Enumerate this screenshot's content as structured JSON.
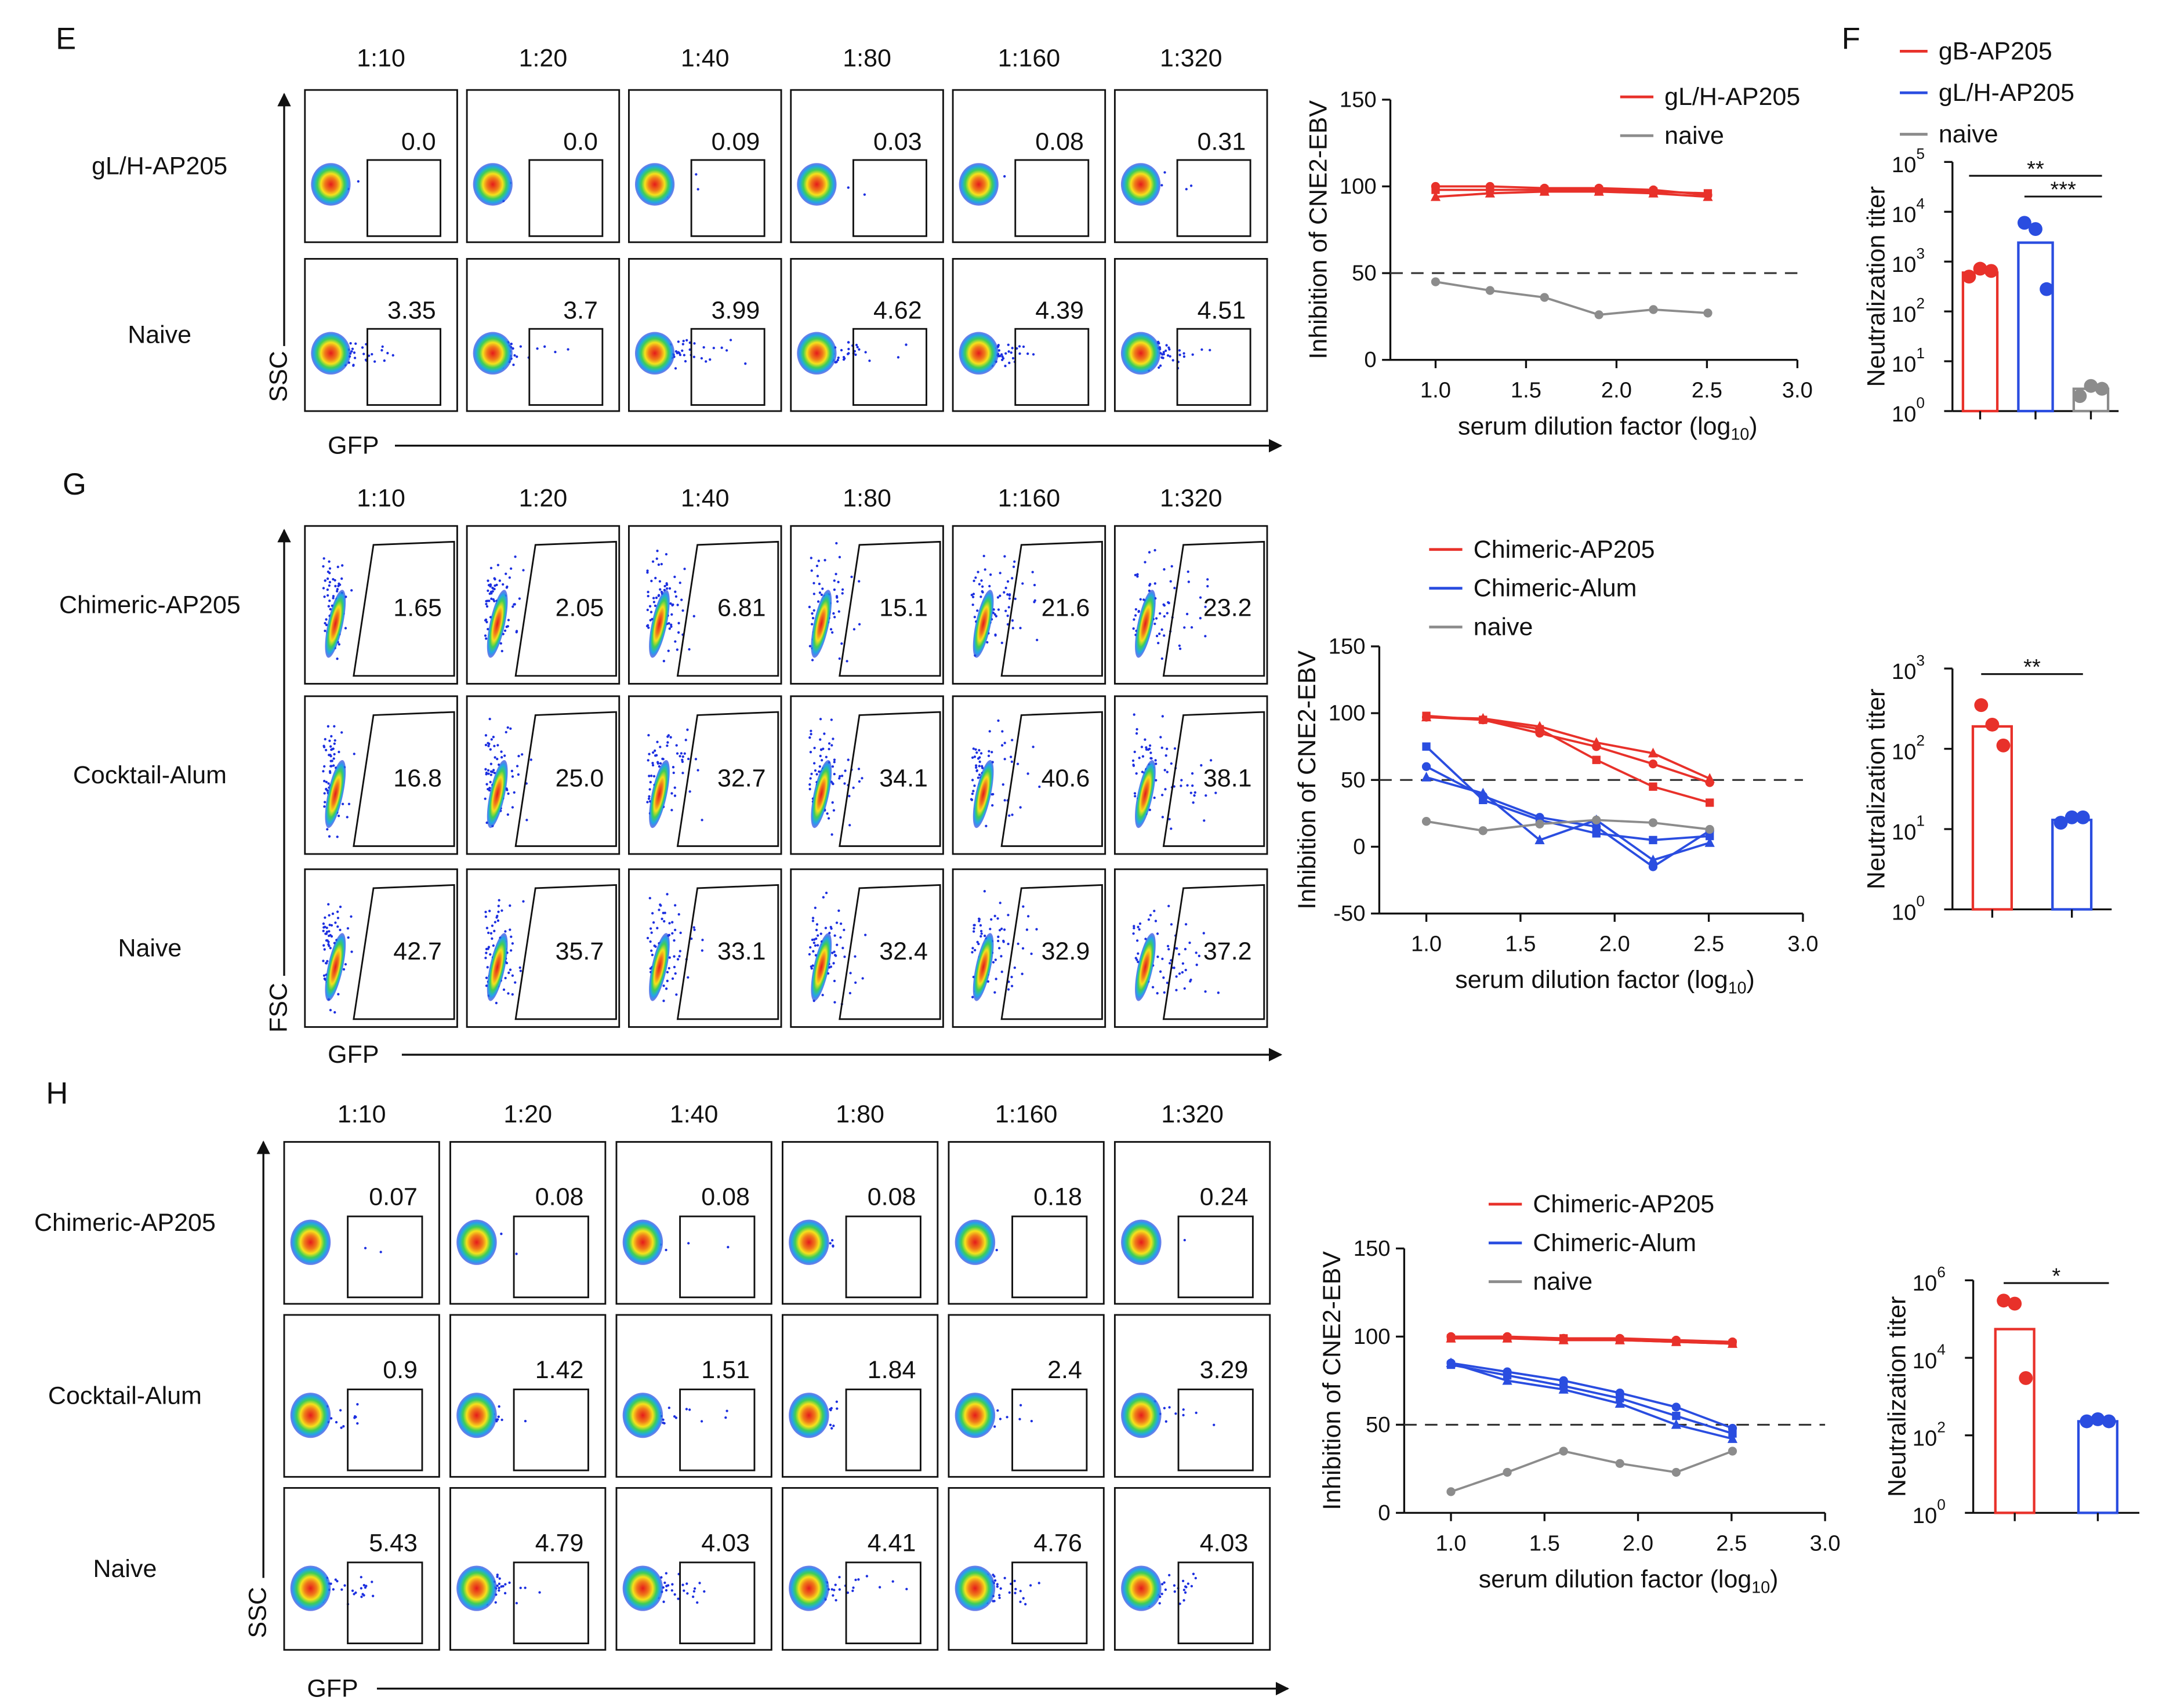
{
  "panel_labels": [
    "E",
    "F",
    "G",
    "H"
  ],
  "flow_panels": [
    {
      "dilutions": [
        "1:10",
        "1:20",
        "1:40",
        "1:80",
        "1:160",
        "1:320"
      ],
      "y_axis": "SSC",
      "x_axis": "GFP",
      "gate": "rect",
      "rows": [
        {
          "label": "gL/H-AP205",
          "gates": [
            "0.0",
            "0.0",
            "0.09",
            "0.03",
            "0.08",
            "0.31"
          ]
        },
        {
          "label": "Naive",
          "gates": [
            "3.35",
            "3.7",
            "3.99",
            "4.62",
            "4.39",
            "4.51"
          ]
        }
      ]
    },
    {
      "dilutions": [
        "1:10",
        "1:20",
        "1:40",
        "1:80",
        "1:160",
        "1:320"
      ],
      "y_axis": "FSC",
      "x_axis": "GFP",
      "gate": "polygon",
      "rows": [
        {
          "label": "Chimeric-AP205",
          "gates": [
            "1.65",
            "2.05",
            "6.81",
            "15.1",
            "21.6",
            "23.2"
          ]
        },
        {
          "label": "Cocktail-Alum",
          "gates": [
            "16.8",
            "25.0",
            "32.7",
            "34.1",
            "40.6",
            "38.1"
          ]
        },
        {
          "label": "Naive",
          "gates": [
            "42.7",
            "35.7",
            "33.1",
            "32.4",
            "32.9",
            "37.2"
          ]
        }
      ]
    },
    {
      "dilutions": [
        "1:10",
        "1:20",
        "1:40",
        "1:80",
        "1:160",
        "1:320"
      ],
      "y_axis": "SSC",
      "x_axis": "GFP",
      "gate": "rect",
      "rows": [
        {
          "label": "Chimeric-AP205",
          "gates": [
            "0.07",
            "0.08",
            "0.08",
            "0.08",
            "0.18",
            "0.24"
          ]
        },
        {
          "label": "Cocktail-Alum",
          "gates": [
            "0.9",
            "1.42",
            "1.51",
            "1.84",
            "2.4",
            "3.29"
          ]
        },
        {
          "label": "Naive",
          "gates": [
            "5.43",
            "4.79",
            "4.03",
            "4.41",
            "4.76",
            "4.03"
          ]
        }
      ]
    }
  ],
  "chart_data": [
    {
      "type": "line",
      "ylabel": "Inhibition of CNE2-EBV",
      "xlabel": {
        "text": "serum dilution factor (log",
        "sub": "10",
        "end": ")"
      },
      "x": [
        1.0,
        1.301,
        1.602,
        1.903,
        2.204,
        2.505
      ],
      "xlim": [
        0.75,
        3.0
      ],
      "xticks": [
        {
          "value": 1,
          "label": "1.0"
        },
        {
          "value": 1.5,
          "label": "1.5"
        },
        {
          "value": 2,
          "label": "2.0"
        },
        {
          "value": 2.5,
          "label": "2.5"
        },
        {
          "value": 3,
          "label": "3.0"
        }
      ],
      "ylim": [
        0,
        150
      ],
      "yticks": [
        0,
        50,
        100,
        150
      ],
      "reference_line": 50,
      "series": [
        {
          "name": "gL/H-AP205",
          "color": "#e8312a",
          "replicates": [
            [
              100,
              100,
              99,
              99,
              98,
              95
            ],
            [
              98,
              98,
              98,
              98,
              97,
              96
            ],
            [
              94,
              96,
              97,
              97,
              96,
              94
            ]
          ]
        },
        {
          "name": "naive",
          "color": "#8c8c8c",
          "replicates": [
            [
              45,
              40,
              36,
              26,
              29,
              27
            ]
          ]
        }
      ]
    },
    {
      "type": "bar",
      "log_scale": true,
      "ylabel": "Neutralization titer",
      "ylim": [
        1,
        100000
      ],
      "yticks": [
        {
          "value": 1,
          "label": "10",
          "sup": "0"
        },
        {
          "value": 10,
          "label": "10",
          "sup": "1"
        },
        {
          "value": 100,
          "label": "10",
          "sup": "2"
        },
        {
          "value": 1000,
          "label": "10",
          "sup": "3"
        },
        {
          "value": 10000,
          "label": "10",
          "sup": "4"
        },
        {
          "value": 100000,
          "label": "10",
          "sup": "5"
        }
      ],
      "series": [
        {
          "name": "gB-AP205",
          "color": "#e8312a",
          "value": 600,
          "points": [
            500,
            720,
            650
          ]
        },
        {
          "name": "gL/H-AP205",
          "color": "#2a4de0",
          "value": 2400,
          "points": [
            6000,
            4500,
            280
          ]
        },
        {
          "name": "naive",
          "color": "#8c8c8c",
          "value": 2.8,
          "points": [
            2,
            3.2,
            2.8
          ]
        }
      ],
      "significance": [
        {
          "from": 0,
          "to": 2,
          "label": "**"
        },
        {
          "from": 1,
          "to": 2,
          "label": "***"
        }
      ]
    },
    {
      "type": "line",
      "ylabel": "Inhibition of CNE2-EBV",
      "xlabel": {
        "text": "serum dilution factor (log",
        "sub": "10",
        "end": ")"
      },
      "x": [
        1.0,
        1.301,
        1.602,
        1.903,
        2.204,
        2.505
      ],
      "xlim": [
        0.75,
        3.0
      ],
      "xticks": [
        {
          "value": 1,
          "label": "1.0"
        },
        {
          "value": 1.5,
          "label": "1.5"
        },
        {
          "value": 2,
          "label": "2.0"
        },
        {
          "value": 2.5,
          "label": "2.5"
        },
        {
          "value": 3,
          "label": "3.0"
        }
      ],
      "ylim": [
        -50,
        150
      ],
      "yticks": [
        -50,
        0,
        50,
        100,
        150
      ],
      "reference_line": 50,
      "series": [
        {
          "name": "Chimeric-AP205",
          "color": "#e8312a",
          "replicates": [
            [
              97,
              95,
              85,
              75,
              62,
              48
            ],
            [
              98,
              95,
              88,
              65,
              45,
              33
            ],
            [
              97,
              96,
              90,
              78,
              70,
              51
            ]
          ]
        },
        {
          "name": "Chimeric-Alum",
          "color": "#2a4de0",
          "replicates": [
            [
              60,
              38,
              22,
              15,
              -15,
              12
            ],
            [
              75,
              35,
              20,
              10,
              5,
              8
            ],
            [
              52,
              40,
              5,
              20,
              -10,
              3
            ]
          ]
        },
        {
          "name": "naive",
          "color": "#8c8c8c",
          "replicates": [
            [
              19,
              12,
              17,
              20,
              18,
              13
            ]
          ]
        }
      ]
    },
    {
      "type": "bar",
      "log_scale": true,
      "ylabel": "Neutralization titer",
      "ylim": [
        1,
        1000
      ],
      "yticks": [
        {
          "value": 1,
          "label": "10",
          "sup": "0"
        },
        {
          "value": 10,
          "label": "10",
          "sup": "1"
        },
        {
          "value": 100,
          "label": "10",
          "sup": "2"
        },
        {
          "value": 1000,
          "label": "10",
          "sup": "3"
        }
      ],
      "series": [
        {
          "color": "#e8312a",
          "value": 190,
          "points": [
            350,
            200,
            110
          ]
        },
        {
          "color": "#2a4de0",
          "value": 13,
          "points": [
            12,
            14,
            14
          ]
        }
      ],
      "significance": [
        {
          "from": 0,
          "to": 1,
          "label": "**"
        }
      ]
    },
    {
      "type": "line",
      "ylabel": "Inhibition of CNE2-EBV",
      "xlabel": {
        "text": "serum dilution factor (log",
        "sub": "10",
        "end": ")"
      },
      "x": [
        1.0,
        1.301,
        1.602,
        1.903,
        2.204,
        2.505
      ],
      "xlim": [
        0.75,
        3.0
      ],
      "xticks": [
        {
          "value": 1,
          "label": "1.0"
        },
        {
          "value": 1.5,
          "label": "1.5"
        },
        {
          "value": 2,
          "label": "2.0"
        },
        {
          "value": 2.5,
          "label": "2.5"
        },
        {
          "value": 3,
          "label": "3.0"
        }
      ],
      "ylim": [
        0,
        150
      ],
      "yticks": [
        0,
        50,
        100,
        150
      ],
      "reference_line": 50,
      "series": [
        {
          "name": "Chimeric-AP205",
          "color": "#e8312a",
          "replicates": [
            [
              100,
              100,
              99,
              99,
              98,
              97
            ],
            [
              99,
              99,
              99,
              98,
              97,
              96
            ],
            [
              99,
              99,
              98,
              98,
              97,
              96
            ]
          ]
        },
        {
          "name": "Chimeric-Alum",
          "color": "#2a4de0",
          "replicates": [
            [
              85,
              80,
              75,
              68,
              60,
              48
            ],
            [
              84,
              78,
              72,
              65,
              55,
              45
            ],
            [
              85,
              75,
              70,
              62,
              50,
              42
            ]
          ]
        },
        {
          "name": "naive",
          "color": "#8c8c8c",
          "replicates": [
            [
              12,
              23,
              35,
              28,
              23,
              35
            ]
          ]
        }
      ]
    },
    {
      "type": "bar",
      "log_scale": true,
      "ylabel": "Neutralization titer",
      "ylim": [
        1,
        1000000
      ],
      "yticks": [
        {
          "value": 1,
          "label": "10",
          "sup": "0"
        },
        {
          "value": 100,
          "label": "10",
          "sup": "2"
        },
        {
          "value": 10000,
          "label": "10",
          "sup": "4"
        },
        {
          "value": 1000000,
          "label": "10",
          "sup": "6"
        }
      ],
      "series": [
        {
          "color": "#e8312a",
          "value": 55000,
          "points": [
            300000,
            250000,
            3000
          ]
        },
        {
          "color": "#2a4de0",
          "value": 230,
          "points": [
            230,
            260,
            230
          ]
        }
      ],
      "significance": [
        {
          "from": 0,
          "to": 1,
          "label": "*"
        }
      ]
    }
  ]
}
